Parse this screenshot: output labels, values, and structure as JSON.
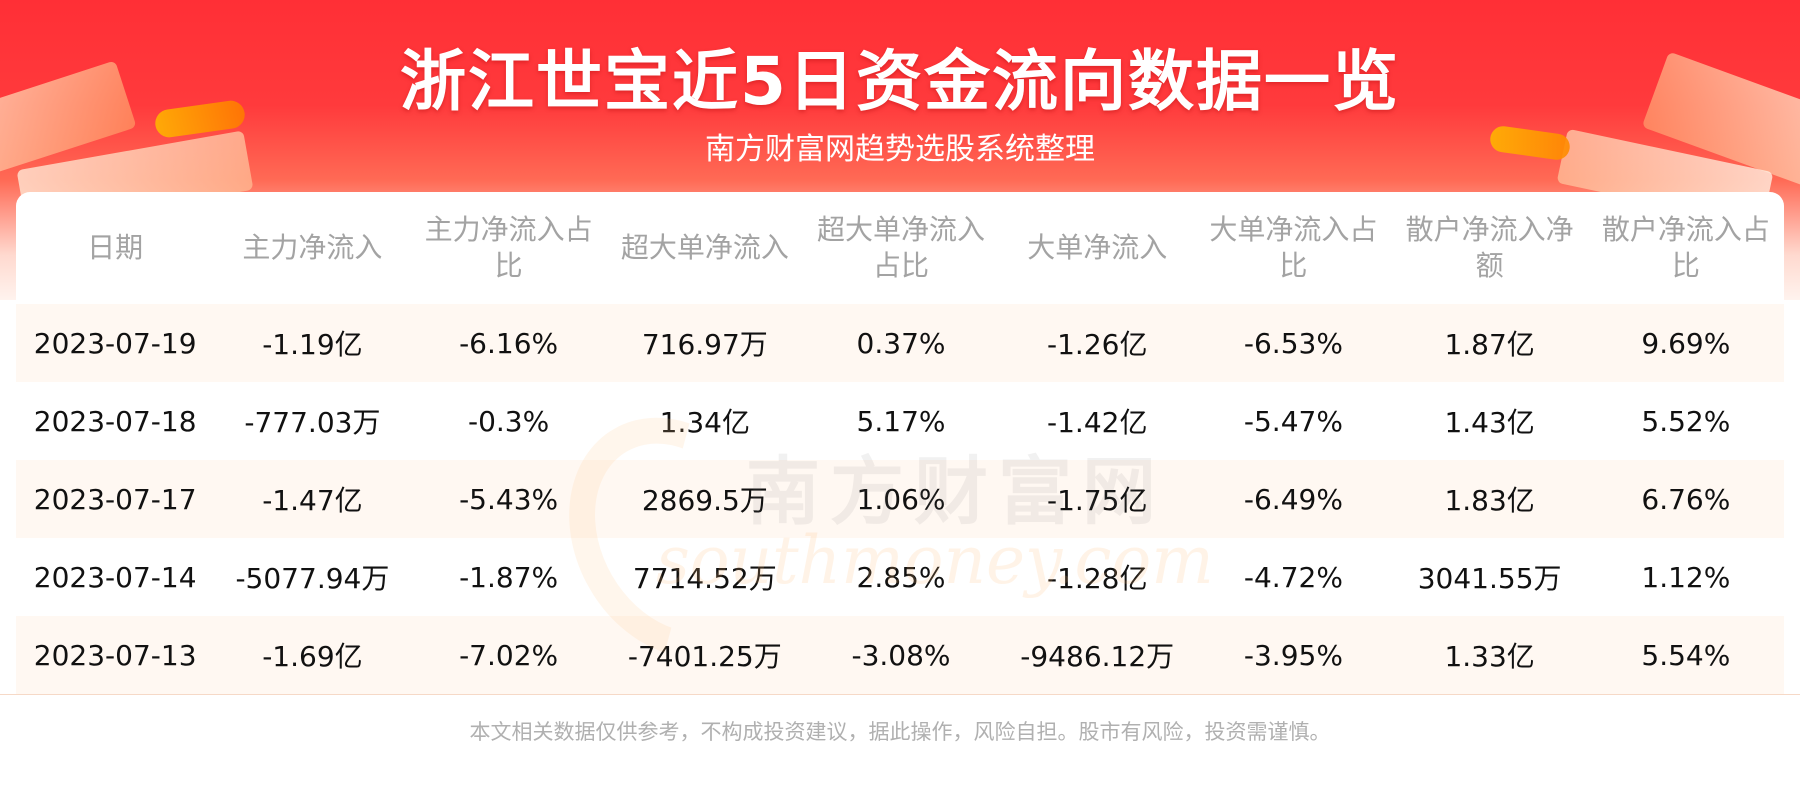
{
  "header": {
    "title": "浙江世宝近5日资金流向数据一览",
    "subtitle": "南方财富网趋势选股系统整理"
  },
  "watermark": {
    "cn": "南方财富网",
    "en": "southmoney.com"
  },
  "table": {
    "columns": [
      "日期",
      "主力净流入",
      "主力净流入占比",
      "超大单净流入",
      "超大单净流入占比",
      "大单净流入",
      "大单净流入占比",
      "散户净流入净额",
      "散户净流入占比"
    ],
    "rows": [
      [
        "2023-07-19",
        "-1.19亿",
        "-6.16%",
        "716.97万",
        "0.37%",
        "-1.26亿",
        "-6.53%",
        "1.87亿",
        "9.69%"
      ],
      [
        "2023-07-18",
        "-777.03万",
        "-0.3%",
        "1.34亿",
        "5.17%",
        "-1.42亿",
        "-5.47%",
        "1.43亿",
        "5.52%"
      ],
      [
        "2023-07-17",
        "-1.47亿",
        "-5.43%",
        "2869.5万",
        "1.06%",
        "-1.75亿",
        "-6.49%",
        "1.83亿",
        "6.76%"
      ],
      [
        "2023-07-14",
        "-5077.94万",
        "-1.87%",
        "7714.52万",
        "2.85%",
        "-1.28亿",
        "-4.72%",
        "3041.55万",
        "1.12%"
      ],
      [
        "2023-07-13",
        "-1.69亿",
        "-7.02%",
        "-7401.25万",
        "-3.08%",
        "-9486.12万",
        "-3.95%",
        "1.33亿",
        "5.54%"
      ]
    ]
  },
  "footer": {
    "disclaimer": "本文相关数据仅供参考，不构成投资建议，据此操作，风险自担。股市有风险，投资需谨慎。"
  },
  "colors": {
    "banner_red": "#ff2f36",
    "header_text": "#a3a3a3",
    "stripe": "#fff8f2"
  }
}
